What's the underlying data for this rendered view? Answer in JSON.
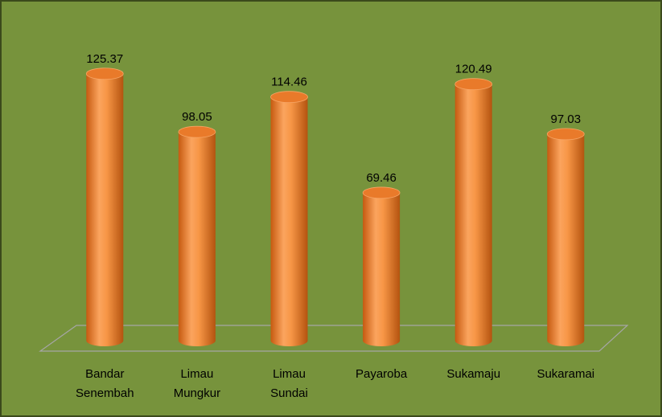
{
  "chart_data": {
    "type": "bar",
    "categories": [
      "Bandar Senembah",
      "Limau Mungkur",
      "Limau Sundai",
      "Payaroba",
      "Sukamaju",
      "Sukaramai"
    ],
    "values": [
      125.37,
      98.05,
      114.46,
      69.46,
      120.49,
      97.03
    ],
    "color": "#f79646",
    "background": "#77933c",
    "ylim": [
      0,
      140
    ]
  }
}
